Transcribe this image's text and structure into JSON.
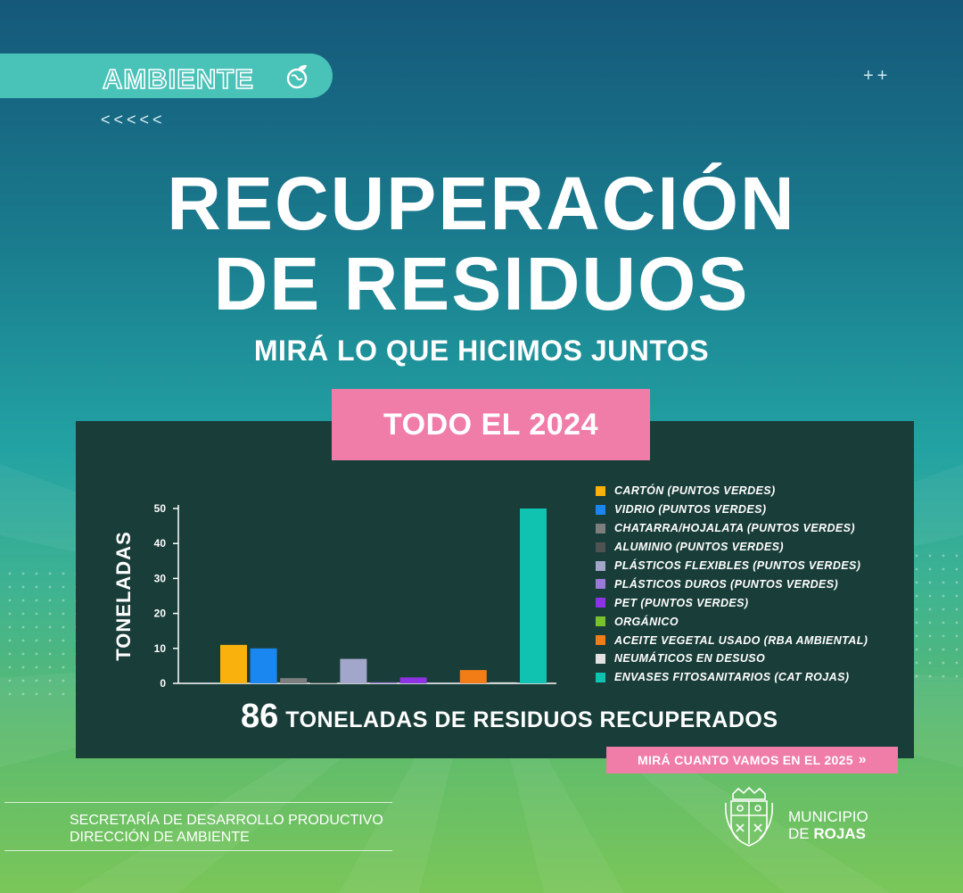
{
  "header": {
    "tag_label": "AMBIENTE",
    "plus_marks": "++",
    "chevrons": "<<<<<",
    "title_line1": "RECUPERACIÓN",
    "title_line2": "DE RESIDUOS",
    "subtitle": "MIRÁ LO QUE HICIMOS JUNTOS",
    "period_label": "TODO EL 2024"
  },
  "colors": {
    "pink": "#f07ca8",
    "panel": "#193d38",
    "tag": "#49c2b8"
  },
  "chart_data": {
    "type": "bar",
    "ylabel": "TONELADAS",
    "xlabel": "",
    "ylim": [
      0,
      50
    ],
    "yticks": [
      0,
      10,
      20,
      30,
      40,
      50
    ],
    "grid": false,
    "legend_position": "right",
    "series": [
      {
        "name": "CARTÓN (PUNTOS VERDES)",
        "value": 11,
        "color": "#f9b20d"
      },
      {
        "name": "VIDRIO (PUNTOS VERDES)",
        "value": 10,
        "color": "#1a86f0"
      },
      {
        "name": "CHATARRA/HOJALATA (PUNTOS VERDES)",
        "value": 1.5,
        "color": "#7d7f7f"
      },
      {
        "name": "ALUMINIO (PUNTOS VERDES)",
        "value": 0.2,
        "color": "#4f5352"
      },
      {
        "name": "PLÁSTICOS FLEXIBLES (PUNTOS VERDES)",
        "value": 7,
        "color": "#a3a6cb"
      },
      {
        "name": "PLÁSTICOS DUROS (PUNTOS VERDES)",
        "value": 0.3,
        "color": "#9b79d6"
      },
      {
        "name": "PET (PUNTOS VERDES)",
        "value": 1.7,
        "color": "#8e33e3"
      },
      {
        "name": "ORGÁNICO",
        "value": 0,
        "color": "#79c22b"
      },
      {
        "name": "ACEITE VEGETAL USADO (RBA AMBIENTAL)",
        "value": 3.8,
        "color": "#f27d16"
      },
      {
        "name": "NEUMÁTICOS EN DESUSO",
        "value": 0.3,
        "color": "#e2e2e2"
      },
      {
        "name": "ENVASES FITOSANITARIOS (CAT ROJAS)",
        "value": 50,
        "color": "#10c2b0"
      }
    ]
  },
  "summary": {
    "total": "86",
    "total_label": "TONELADAS DE RESIDUOS RECUPERADOS",
    "cta_label": "MIRÁ CUANTO VAMOS EN EL 2025",
    "cta_arrow": "»"
  },
  "footer": {
    "line1": "SECRETARÍA DE DESARROLLO PRODUCTIVO",
    "line2": "DIRECCIÓN DE AMBIENTE",
    "municipio_line1": "MUNICIPIO",
    "municipio_line2_prefix": "DE ",
    "municipio_line2_bold": "ROJAS",
    "crest_icon": "municipal-crest-icon",
    "tag_icon": "globe-leaf-icon"
  }
}
